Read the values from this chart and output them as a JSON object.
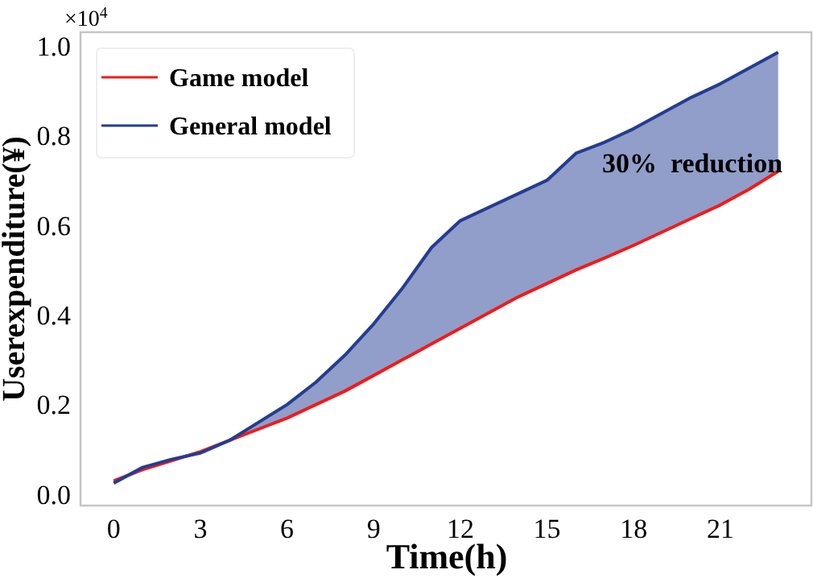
{
  "chart_data": {
    "type": "line",
    "xlabel": "Time(h)",
    "ylabel": "Userexpenditure(¥)",
    "x": [
      0,
      1,
      2,
      3,
      4,
      5,
      6,
      7,
      8,
      9,
      10,
      11,
      12,
      13,
      14,
      15,
      16,
      17,
      18,
      19,
      20,
      21,
      22,
      23
    ],
    "series": [
      {
        "name": "Game model",
        "color": "#ee1c1c",
        "values": [
          0.03,
          0.055,
          0.075,
          0.095,
          0.12,
          0.145,
          0.17,
          0.2,
          0.23,
          0.265,
          0.3,
          0.335,
          0.37,
          0.405,
          0.44,
          0.47,
          0.5,
          0.527,
          0.555,
          0.585,
          0.615,
          0.645,
          0.68,
          0.72
        ]
      },
      {
        "name": "General model",
        "color": "#233d94",
        "values": [
          0.025,
          0.06,
          0.078,
          0.092,
          0.12,
          0.16,
          0.2,
          0.25,
          0.31,
          0.38,
          0.46,
          0.55,
          0.61,
          0.64,
          0.67,
          0.7,
          0.76,
          0.785,
          0.815,
          0.85,
          0.885,
          0.915,
          0.95,
          0.985
        ],
        "lower": [
          0.03,
          0.055,
          0.075,
          0.095,
          0.12,
          0.145,
          0.17,
          0.2,
          0.23,
          0.265,
          0.3,
          0.335,
          0.37,
          0.405,
          0.44,
          0.47,
          0.5,
          0.527,
          0.555,
          0.585,
          0.615,
          0.645,
          0.68,
          0.72
        ],
        "upper": [
          0.025,
          0.06,
          0.078,
          0.092,
          0.12,
          0.16,
          0.2,
          0.25,
          0.31,
          0.38,
          0.46,
          0.55,
          0.61,
          0.64,
          0.67,
          0.7,
          0.76,
          0.785,
          0.815,
          0.85,
          0.885,
          0.915,
          0.95,
          0.985
        ]
      }
    ],
    "xlim": [
      -1.15,
      24.15
    ],
    "ylim": [
      -0.025,
      1.03
    ],
    "xticks": [
      0,
      3,
      6,
      9,
      12,
      15,
      18,
      21
    ],
    "yticks": [
      {
        "value": 0,
        "label": "0.0"
      },
      0.2,
      0.4,
      0.6,
      0.8,
      {
        "value": 1,
        "label": "1.0"
      }
    ],
    "annotations": [
      "×10$^{4}$",
      "30%  reduction"
    ],
    "legend": "top left",
    "grid": false,
    "line_style": "solid",
    "marker": "none"
  }
}
